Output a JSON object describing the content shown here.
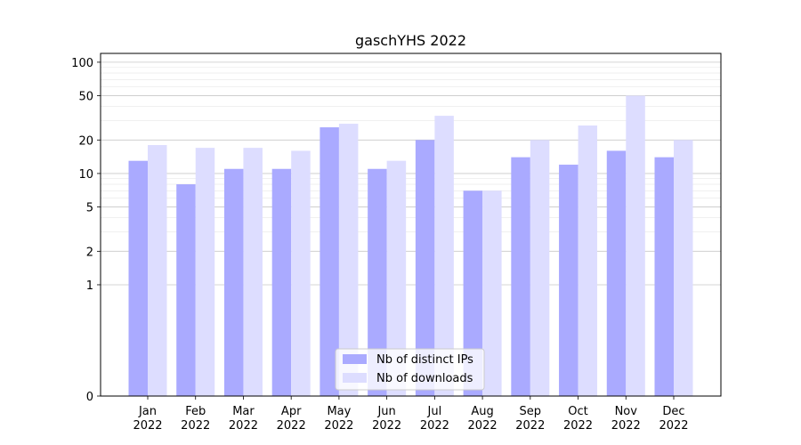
{
  "chart_data": {
    "type": "bar",
    "title": "gaschYHS 2022",
    "xlabel": "",
    "ylabel": "",
    "y_scale": "symlog",
    "ylim": [
      0,
      120
    ],
    "y_ticks": [
      0,
      1,
      2,
      5,
      10,
      20,
      50,
      100
    ],
    "y_tick_labels": [
      "0",
      "1",
      "2",
      "5",
      "10",
      "20",
      "50",
      "100"
    ],
    "grid": "y",
    "legend_position": "bottom-center",
    "categories": [
      [
        "Jan",
        "2022"
      ],
      [
        "Feb",
        "2022"
      ],
      [
        "Mar",
        "2022"
      ],
      [
        "Apr",
        "2022"
      ],
      [
        "May",
        "2022"
      ],
      [
        "Jun",
        "2022"
      ],
      [
        "Jul",
        "2022"
      ],
      [
        "Aug",
        "2022"
      ],
      [
        "Sep",
        "2022"
      ],
      [
        "Oct",
        "2022"
      ],
      [
        "Nov",
        "2022"
      ],
      [
        "Dec",
        "2022"
      ]
    ],
    "series": [
      {
        "name": "Nb of distinct IPs",
        "color": "#aaaaff",
        "values": [
          13,
          8,
          11,
          11,
          26,
          11,
          20,
          7,
          14,
          12,
          16,
          14
        ]
      },
      {
        "name": "Nb of downloads",
        "color": "#ddddff",
        "values": [
          18,
          17,
          17,
          16,
          28,
          13,
          33,
          7,
          20,
          27,
          50,
          20
        ]
      }
    ]
  }
}
